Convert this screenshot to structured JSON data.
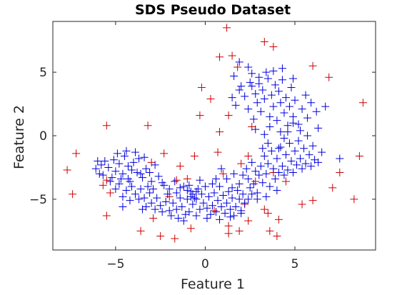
{
  "chart_data": {
    "type": "scatter",
    "title": "SDS Pseudo Dataset",
    "xlabel": "Feature 1",
    "ylabel": "Feature 2",
    "xlim": [
      -8.5,
      9.5
    ],
    "ylim": [
      -9.0,
      9.0
    ],
    "xticks": [
      -5,
      0,
      5
    ],
    "yticks": [
      -5,
      0,
      5
    ],
    "xtick_labels": [
      "−5",
      "0",
      "5"
    ],
    "ytick_labels": [
      "−5",
      "0",
      "5"
    ],
    "grid": false,
    "legend": "none",
    "marker": "+",
    "series": [
      {
        "color": "#cc0000",
        "points": [
          [
            1.2,
            8.5
          ],
          [
            3.3,
            7.4
          ],
          [
            3.8,
            7.0
          ],
          [
            1.5,
            6.3
          ],
          [
            0.8,
            6.2
          ],
          [
            1.8,
            5.4
          ],
          [
            6.0,
            5.5
          ],
          [
            6.9,
            4.6
          ],
          [
            -0.2,
            3.8
          ],
          [
            0.3,
            2.9
          ],
          [
            -0.3,
            1.6
          ],
          [
            1.3,
            1.6
          ],
          [
            2.6,
            0.7
          ],
          [
            -3.2,
            0.8
          ],
          [
            -5.5,
            0.8
          ],
          [
            0.8,
            0.3
          ],
          [
            8.8,
            2.6
          ],
          [
            -2.3,
            -1.4
          ],
          [
            -0.6,
            -1.6
          ],
          [
            0.7,
            -1.3
          ],
          [
            -7.2,
            -1.4
          ],
          [
            -7.7,
            -2.7
          ],
          [
            -3.0,
            -2.1
          ],
          [
            -1.4,
            -2.4
          ],
          [
            2.4,
            -1.6
          ],
          [
            8.6,
            -1.6
          ],
          [
            7.5,
            -2.9
          ],
          [
            -5.5,
            -3.5
          ],
          [
            -5.7,
            -3.9
          ],
          [
            -7.4,
            -4.6
          ],
          [
            -5.3,
            -4.5
          ],
          [
            -1.6,
            -3.5
          ],
          [
            -1.0,
            -3.4
          ],
          [
            7.1,
            -4.1
          ],
          [
            6.0,
            -5.1
          ],
          [
            8.3,
            -5.0
          ],
          [
            -5.5,
            -6.3
          ],
          [
            -2.9,
            -6.5
          ],
          [
            3.5,
            -6.1
          ],
          [
            2.4,
            -6.7
          ],
          [
            1.3,
            -7.1
          ],
          [
            4.1,
            -6.6
          ],
          [
            -3.6,
            -7.5
          ],
          [
            -2.5,
            -7.9
          ],
          [
            -1.7,
            -8.1
          ],
          [
            -0.8,
            -7.3
          ],
          [
            1.9,
            -7.5
          ],
          [
            3.6,
            -7.5
          ],
          [
            4.0,
            -7.9
          ],
          [
            1.3,
            -7.7
          ],
          [
            2.2,
            -5.4
          ],
          [
            3.3,
            -5.8
          ],
          [
            0.5,
            -5.9
          ],
          [
            5.4,
            -5.4
          ],
          [
            -2.0,
            -4.8
          ],
          [
            2.0,
            -2.2
          ],
          [
            3.8,
            -2.9
          ],
          [
            2.8,
            -3.6
          ],
          [
            4.5,
            -3.6
          ],
          [
            1.0,
            -3.0
          ]
        ]
      },
      {
        "color": "#0000dd",
        "points": [
          [
            -6.0,
            -2.0
          ],
          [
            -6.1,
            -2.6
          ],
          [
            -5.8,
            -2.3
          ],
          [
            -5.7,
            -3.1
          ],
          [
            -5.4,
            -2.5
          ],
          [
            -5.2,
            -3.3
          ],
          [
            -5.0,
            -2.8
          ],
          [
            -4.8,
            -2.2
          ],
          [
            -4.6,
            -3.0
          ],
          [
            -4.5,
            -1.6
          ],
          [
            -4.3,
            -2.4
          ],
          [
            -4.2,
            -3.6
          ],
          [
            -4.0,
            -2.1
          ],
          [
            -3.8,
            -2.9
          ],
          [
            -3.7,
            -1.8
          ],
          [
            -3.5,
            -3.3
          ],
          [
            -3.3,
            -2.6
          ],
          [
            -3.1,
            -2.9
          ],
          [
            -3.0,
            -3.6
          ],
          [
            -2.8,
            -2.3
          ],
          [
            -5.3,
            -3.6
          ],
          [
            -5.0,
            -4.2
          ],
          [
            -4.8,
            -3.8
          ],
          [
            -4.6,
            -4.8
          ],
          [
            -4.4,
            -4.3
          ],
          [
            -4.2,
            -5.1
          ],
          [
            -4.1,
            -4.0
          ],
          [
            -3.9,
            -4.6
          ],
          [
            -3.7,
            -5.0
          ],
          [
            -3.6,
            -4.2
          ],
          [
            -3.4,
            -4.9
          ],
          [
            -3.3,
            -5.6
          ],
          [
            -3.1,
            -4.5
          ],
          [
            -3.0,
            -5.3
          ],
          [
            -2.8,
            -5.8
          ],
          [
            -2.7,
            -4.9
          ],
          [
            -2.5,
            -5.5
          ],
          [
            -2.4,
            -6.0
          ],
          [
            -2.2,
            -5.2
          ],
          [
            -2.1,
            -4.6
          ],
          [
            -2.0,
            -5.9
          ],
          [
            -1.9,
            -6.3
          ],
          [
            -1.8,
            -5.3
          ],
          [
            -1.6,
            -5.8
          ],
          [
            -1.5,
            -6.5
          ],
          [
            -1.4,
            -4.9
          ],
          [
            -1.3,
            -5.6
          ],
          [
            -1.1,
            -6.2
          ],
          [
            -1.0,
            -5.0
          ],
          [
            -0.9,
            -6.0
          ],
          [
            -0.8,
            -4.4
          ],
          [
            -0.7,
            -5.4
          ],
          [
            -0.5,
            -5.0
          ],
          [
            -0.4,
            -4.2
          ],
          [
            -0.3,
            -5.8
          ],
          [
            -0.2,
            -4.6
          ],
          [
            -0.1,
            -5.3
          ],
          [
            0.0,
            -4.0
          ],
          [
            0.1,
            -5.7
          ],
          [
            0.2,
            -4.8
          ],
          [
            0.3,
            -6.2
          ],
          [
            0.4,
            -5.5
          ],
          [
            0.5,
            -4.5
          ],
          [
            0.6,
            -6.0
          ],
          [
            0.7,
            -5.1
          ],
          [
            0.8,
            -4.0
          ],
          [
            0.9,
            -5.6
          ],
          [
            1.0,
            -4.7
          ],
          [
            1.1,
            -6.1
          ],
          [
            1.2,
            -5.3
          ],
          [
            1.3,
            -4.4
          ],
          [
            1.4,
            -5.8
          ],
          [
            1.5,
            -4.9
          ],
          [
            1.6,
            -6.3
          ],
          [
            1.7,
            -5.6
          ],
          [
            1.8,
            -4.3
          ],
          [
            1.9,
            -5.0
          ],
          [
            2.0,
            -5.9
          ],
          [
            2.1,
            -4.6
          ],
          [
            2.2,
            -5.3
          ],
          [
            -1.2,
            -4.0
          ],
          [
            -1.0,
            -4.3
          ],
          [
            -0.9,
            -3.9
          ],
          [
            -0.8,
            -4.8
          ],
          [
            -0.7,
            -4.6
          ],
          [
            -0.6,
            -4.9
          ],
          [
            -0.5,
            -4.4
          ],
          [
            -1.4,
            -4.1
          ],
          [
            -1.6,
            -4.5
          ],
          [
            -2.3,
            -3.9
          ],
          [
            -4.9,
            -1.4
          ],
          [
            -4.4,
            -1.2
          ],
          [
            -3.4,
            -1.7
          ],
          [
            -3.9,
            -1.3
          ],
          [
            -2.6,
            -3.2
          ],
          [
            -5.6,
            -2.0
          ],
          [
            -4.7,
            -3.4
          ],
          [
            -2.9,
            -4.2
          ],
          [
            -3.6,
            -3.0
          ],
          [
            -4.1,
            -2.7
          ],
          [
            2.3,
            -2.6
          ],
          [
            2.4,
            -3.4
          ],
          [
            2.5,
            -4.1
          ],
          [
            2.6,
            -2.1
          ],
          [
            2.7,
            -3.8
          ],
          [
            2.8,
            -2.8
          ],
          [
            2.9,
            -4.5
          ],
          [
            3.0,
            -3.1
          ],
          [
            3.1,
            -2.4
          ],
          [
            3.2,
            -3.7
          ],
          [
            3.3,
            -1.6
          ],
          [
            3.4,
            -3.0
          ],
          [
            3.5,
            -2.2
          ],
          [
            3.6,
            -4.0
          ],
          [
            3.7,
            -1.2
          ],
          [
            3.8,
            -2.6
          ],
          [
            3.9,
            -3.4
          ],
          [
            4.0,
            -1.8
          ],
          [
            4.1,
            -2.9
          ],
          [
            4.2,
            -0.9
          ],
          [
            4.3,
            -2.4
          ],
          [
            4.4,
            -3.1
          ],
          [
            4.5,
            -1.5
          ],
          [
            4.6,
            -2.7
          ],
          [
            4.7,
            -0.6
          ],
          [
            4.8,
            -2.0
          ],
          [
            4.9,
            -2.9
          ],
          [
            5.0,
            -1.2
          ],
          [
            5.1,
            -2.3
          ],
          [
            5.2,
            -0.4
          ],
          [
            5.3,
            -1.8
          ],
          [
            5.4,
            -2.6
          ],
          [
            5.5,
            -1.0
          ],
          [
            5.6,
            -2.2
          ],
          [
            5.7,
            0.0
          ],
          [
            5.8,
            -1.5
          ],
          [
            5.9,
            -2.4
          ],
          [
            6.0,
            -0.8
          ],
          [
            6.1,
            -1.9
          ],
          [
            6.3,
            -2.1
          ],
          [
            6.5,
            -1.3
          ],
          [
            4.1,
            -1.0
          ],
          [
            3.5,
            -0.6
          ],
          [
            4.6,
            0.3
          ],
          [
            5.3,
            0.4
          ],
          [
            6.3,
            0.6
          ],
          [
            5.7,
            1.4
          ],
          [
            6.2,
            1.9
          ],
          [
            4.9,
            1.0
          ],
          [
            3.2,
            -1.0
          ],
          [
            7.5,
            -1.8
          ],
          [
            2.9,
            -5.0
          ],
          [
            3.4,
            -4.8
          ],
          [
            4.0,
            -4.3
          ],
          [
            1.2,
            -3.4
          ],
          [
            1.6,
            -3.0
          ],
          [
            0.9,
            -2.6
          ],
          [
            2.1,
            -3.1
          ],
          [
            1.5,
            -4.1
          ],
          [
            0.4,
            -3.8
          ],
          [
            1.5,
            3.0
          ],
          [
            1.7,
            2.4
          ],
          [
            1.9,
            3.6
          ],
          [
            2.2,
            3.1
          ],
          [
            2.4,
            2.1
          ],
          [
            2.6,
            3.9
          ],
          [
            2.8,
            3.3
          ],
          [
            2.9,
            2.6
          ],
          [
            3.0,
            4.1
          ],
          [
            3.1,
            1.9
          ],
          [
            3.2,
            3.6
          ],
          [
            3.3,
            2.9
          ],
          [
            3.5,
            4.5
          ],
          [
            3.6,
            1.5
          ],
          [
            3.7,
            3.2
          ],
          [
            3.8,
            2.3
          ],
          [
            3.9,
            4.0
          ],
          [
            4.0,
            1.2
          ],
          [
            4.1,
            3.5
          ],
          [
            4.2,
            2.6
          ],
          [
            4.3,
            4.4
          ],
          [
            4.4,
            1.8
          ],
          [
            4.5,
            3.0
          ],
          [
            4.6,
            0.8
          ],
          [
            4.7,
            2.3
          ],
          [
            4.8,
            3.8
          ],
          [
            4.9,
            1.5
          ],
          [
            5.0,
            2.8
          ],
          [
            5.2,
            0.9
          ],
          [
            5.4,
            2.1
          ],
          [
            2.5,
            4.2
          ],
          [
            3.0,
            4.6
          ],
          [
            2.0,
            3.9
          ],
          [
            3.4,
            5.0
          ],
          [
            2.7,
            1.3
          ],
          [
            3.6,
            0.7
          ],
          [
            4.2,
            0.3
          ],
          [
            2.8,
            0.5
          ],
          [
            3.3,
            0.1
          ],
          [
            4.4,
            -0.2
          ],
          [
            2.4,
            5.4
          ],
          [
            2.6,
            4.9
          ],
          [
            3.8,
            5.1
          ],
          [
            4.3,
            5.3
          ],
          [
            1.6,
            4.7
          ],
          [
            1.9,
            5.8
          ],
          [
            4.9,
            4.5
          ],
          [
            5.6,
            3.2
          ],
          [
            5.9,
            2.6
          ],
          [
            6.7,
            2.3
          ],
          [
            -2.4,
            -3.7
          ],
          [
            -1.7,
            -3.6
          ],
          [
            -0.3,
            -3.5
          ],
          [
            0.6,
            -3.4
          ],
          [
            -3.2,
            -4.0
          ],
          [
            -4.3,
            -3.4
          ],
          [
            -5.1,
            -1.9
          ],
          [
            -5.9,
            -3.0
          ],
          [
            -2.0,
            -4.2
          ],
          [
            -3.5,
            -5.8
          ],
          [
            -4.6,
            -5.6
          ],
          [
            -1.2,
            -6.7
          ],
          [
            -0.5,
            -6.3
          ],
          [
            0.1,
            -6.5
          ],
          [
            0.8,
            -6.6
          ],
          [
            1.4,
            -6.4
          ],
          [
            2.0,
            -6.1
          ],
          [
            2.4,
            -5.0
          ],
          [
            2.6,
            -4.6
          ],
          [
            1.9,
            -3.8
          ]
        ]
      }
    ]
  }
}
